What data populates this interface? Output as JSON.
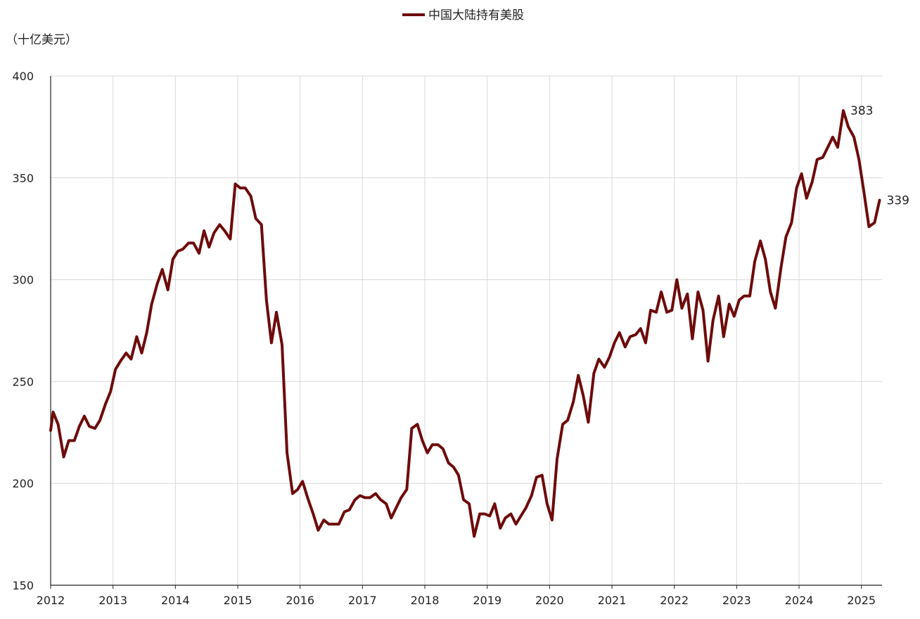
{
  "chart_data": {
    "type": "line",
    "legend_position": "top-center",
    "grid": true,
    "unit_label": "（十亿美元）",
    "x_range": [
      2012.0,
      2025.33
    ],
    "ylim": [
      150,
      400
    ],
    "yticks": [
      150,
      200,
      250,
      300,
      350,
      400
    ],
    "xtick_labels": [
      "2012",
      "2013",
      "2014",
      "2015",
      "2016",
      "2017",
      "2018",
      "2019",
      "2020",
      "2021",
      "2022",
      "2023",
      "2024",
      "2025"
    ],
    "colors": {
      "series": "#6e0b0b",
      "grid": "#d9d9d9",
      "axis": "#222222"
    },
    "series": [
      {
        "name": "中国大陆持有美股",
        "points": [
          [
            2012.0,
            226
          ],
          [
            2012.04,
            235
          ],
          [
            2012.12,
            229
          ],
          [
            2012.21,
            213
          ],
          [
            2012.29,
            221
          ],
          [
            2012.38,
            221
          ],
          [
            2012.46,
            228
          ],
          [
            2012.54,
            233
          ],
          [
            2012.62,
            228
          ],
          [
            2012.71,
            227
          ],
          [
            2012.79,
            231
          ],
          [
            2012.88,
            239
          ],
          [
            2012.96,
            245
          ],
          [
            2013.04,
            256
          ],
          [
            2013.12,
            260
          ],
          [
            2013.21,
            264
          ],
          [
            2013.29,
            261
          ],
          [
            2013.38,
            272
          ],
          [
            2013.46,
            264
          ],
          [
            2013.54,
            274
          ],
          [
            2013.62,
            288
          ],
          [
            2013.71,
            298
          ],
          [
            2013.79,
            305
          ],
          [
            2013.88,
            295
          ],
          [
            2013.96,
            310
          ],
          [
            2014.04,
            314
          ],
          [
            2014.12,
            315
          ],
          [
            2014.21,
            318
          ],
          [
            2014.29,
            318
          ],
          [
            2014.38,
            313
          ],
          [
            2014.46,
            324
          ],
          [
            2014.54,
            316
          ],
          [
            2014.62,
            323
          ],
          [
            2014.71,
            327
          ],
          [
            2014.79,
            324
          ],
          [
            2014.88,
            320
          ],
          [
            2014.96,
            347
          ],
          [
            2015.04,
            345
          ],
          [
            2015.12,
            345
          ],
          [
            2015.21,
            341
          ],
          [
            2015.29,
            330
          ],
          [
            2015.38,
            327
          ],
          [
            2015.46,
            290
          ],
          [
            2015.54,
            269
          ],
          [
            2015.62,
            284
          ],
          [
            2015.71,
            268
          ],
          [
            2015.79,
            215
          ],
          [
            2015.88,
            195
          ],
          [
            2015.96,
            197
          ],
          [
            2016.04,
            201
          ],
          [
            2016.12,
            193
          ],
          [
            2016.21,
            185
          ],
          [
            2016.29,
            177
          ],
          [
            2016.38,
            182
          ],
          [
            2016.46,
            180
          ],
          [
            2016.54,
            180
          ],
          [
            2016.62,
            180
          ],
          [
            2016.71,
            186
          ],
          [
            2016.79,
            187
          ],
          [
            2016.88,
            192
          ],
          [
            2016.96,
            194
          ],
          [
            2017.04,
            193
          ],
          [
            2017.12,
            193
          ],
          [
            2017.21,
            195
          ],
          [
            2017.29,
            192
          ],
          [
            2017.38,
            190
          ],
          [
            2017.46,
            183
          ],
          [
            2017.54,
            188
          ],
          [
            2017.62,
            193
          ],
          [
            2017.71,
            197
          ],
          [
            2017.79,
            227
          ],
          [
            2017.88,
            229
          ],
          [
            2017.96,
            221
          ],
          [
            2018.04,
            215
          ],
          [
            2018.12,
            219
          ],
          [
            2018.21,
            219
          ],
          [
            2018.29,
            217
          ],
          [
            2018.38,
            210
          ],
          [
            2018.46,
            208
          ],
          [
            2018.54,
            204
          ],
          [
            2018.62,
            192
          ],
          [
            2018.71,
            190
          ],
          [
            2018.79,
            174
          ],
          [
            2018.88,
            185
          ],
          [
            2018.96,
            185
          ],
          [
            2019.04,
            184
          ],
          [
            2019.12,
            190
          ],
          [
            2019.21,
            178
          ],
          [
            2019.29,
            183
          ],
          [
            2019.38,
            185
          ],
          [
            2019.46,
            180
          ],
          [
            2019.54,
            184
          ],
          [
            2019.62,
            188
          ],
          [
            2019.71,
            194
          ],
          [
            2019.79,
            203
          ],
          [
            2019.88,
            204
          ],
          [
            2019.96,
            190
          ],
          [
            2020.04,
            182
          ],
          [
            2020.12,
            212
          ],
          [
            2020.21,
            229
          ],
          [
            2020.29,
            231
          ],
          [
            2020.38,
            240
          ],
          [
            2020.46,
            253
          ],
          [
            2020.54,
            243
          ],
          [
            2020.62,
            230
          ],
          [
            2020.71,
            254
          ],
          [
            2020.79,
            261
          ],
          [
            2020.88,
            257
          ],
          [
            2020.96,
            262
          ],
          [
            2021.04,
            269
          ],
          [
            2021.12,
            274
          ],
          [
            2021.21,
            267
          ],
          [
            2021.29,
            272
          ],
          [
            2021.38,
            273
          ],
          [
            2021.46,
            276
          ],
          [
            2021.54,
            269
          ],
          [
            2021.62,
            285
          ],
          [
            2021.71,
            284
          ],
          [
            2021.79,
            294
          ],
          [
            2021.88,
            284
          ],
          [
            2021.96,
            285
          ],
          [
            2022.04,
            300
          ],
          [
            2022.12,
            286
          ],
          [
            2022.21,
            293
          ],
          [
            2022.29,
            271
          ],
          [
            2022.38,
            294
          ],
          [
            2022.46,
            285
          ],
          [
            2022.54,
            260
          ],
          [
            2022.62,
            280
          ],
          [
            2022.71,
            292
          ],
          [
            2022.79,
            272
          ],
          [
            2022.88,
            288
          ],
          [
            2022.96,
            282
          ],
          [
            2023.04,
            290
          ],
          [
            2023.12,
            292
          ],
          [
            2023.21,
            292
          ],
          [
            2023.29,
            309
          ],
          [
            2023.38,
            319
          ],
          [
            2023.46,
            310
          ],
          [
            2023.54,
            294
          ],
          [
            2023.62,
            286
          ],
          [
            2023.71,
            306
          ],
          [
            2023.79,
            321
          ],
          [
            2023.88,
            328
          ],
          [
            2023.96,
            345
          ],
          [
            2024.04,
            352
          ],
          [
            2024.12,
            340
          ],
          [
            2024.21,
            348
          ],
          [
            2024.29,
            359
          ],
          [
            2024.38,
            360
          ],
          [
            2024.46,
            365
          ],
          [
            2024.54,
            370
          ],
          [
            2024.62,
            365
          ],
          [
            2024.71,
            383
          ],
          [
            2024.79,
            375
          ],
          [
            2024.88,
            370
          ],
          [
            2024.96,
            359
          ],
          [
            2025.04,
            343
          ],
          [
            2025.12,
            326
          ],
          [
            2025.21,
            328
          ],
          [
            2025.29,
            339
          ]
        ]
      }
    ],
    "annotations": [
      {
        "text": "383",
        "x": 2024.71,
        "y": 383
      },
      {
        "text": "339",
        "x": 2025.29,
        "y": 339
      }
    ]
  }
}
